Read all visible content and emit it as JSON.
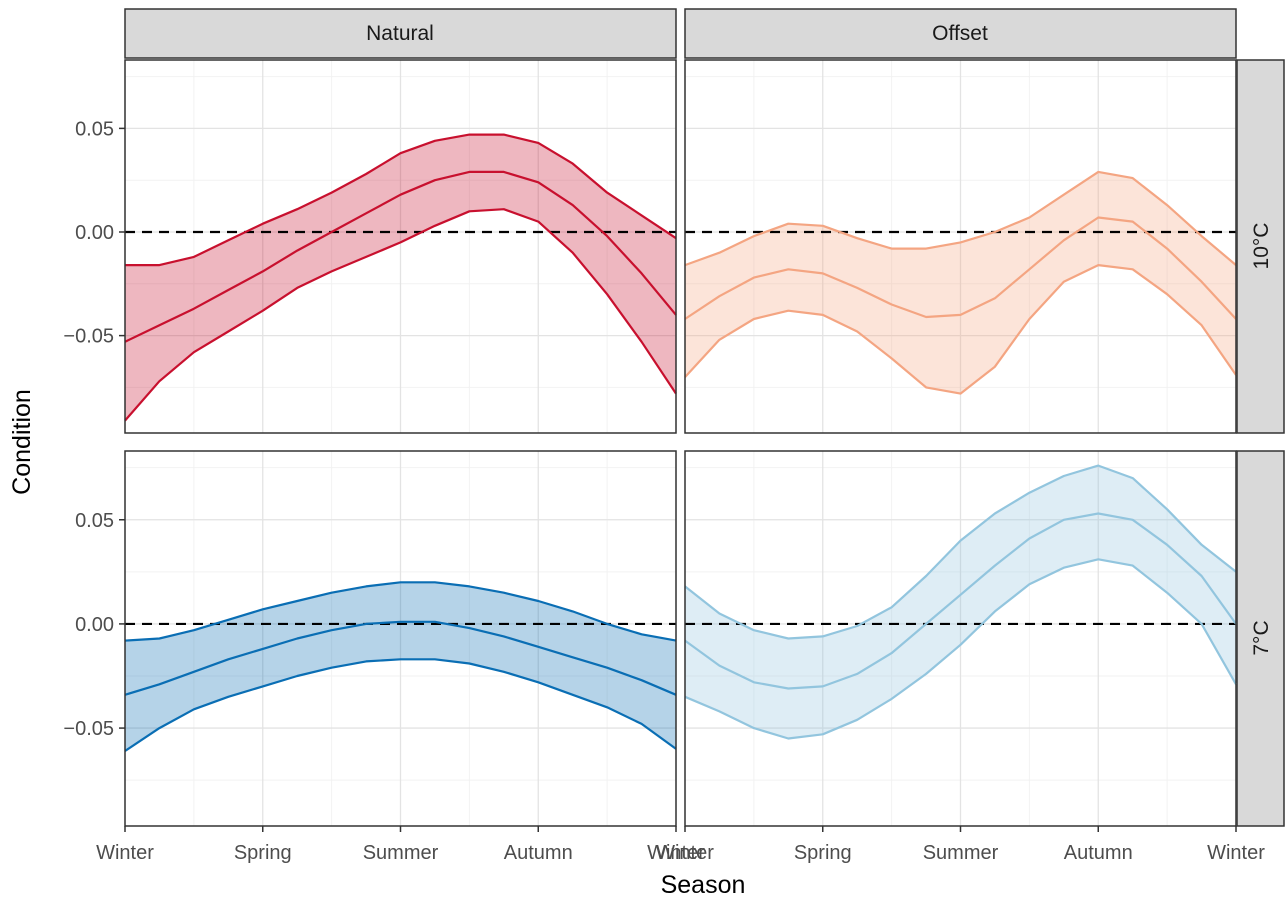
{
  "chart_data": {
    "type": "line",
    "xlabel": "Season",
    "ylabel": "Condition",
    "x_ticks": [
      "Winter",
      "Spring",
      "Summer",
      "Autumn",
      "Winter"
    ],
    "y_ticks": [
      -0.05,
      0.0,
      0.05
    ],
    "y_tick_labels": [
      "−0.05",
      "0.00",
      "0.05"
    ],
    "ylim": [
      -0.097,
      0.083
    ],
    "xlim": [
      0,
      4
    ],
    "reference_line_y": 0,
    "grid": true,
    "column_strips": [
      "Natural",
      "Offset"
    ],
    "row_strips": [
      "10°C",
      "7°C"
    ],
    "panels": [
      {
        "row": "10°C",
        "col": "Natural",
        "color": "#c8102e",
        "x": [
          0,
          0.25,
          0.5,
          0.75,
          1,
          1.25,
          1.5,
          1.75,
          2,
          2.25,
          2.5,
          2.75,
          3,
          3.25,
          3.5,
          3.75,
          4
        ],
        "fit": [
          -0.053,
          -0.045,
          -0.037,
          -0.028,
          -0.019,
          -0.009,
          0.0,
          0.009,
          0.018,
          0.025,
          0.029,
          0.029,
          0.024,
          0.013,
          -0.002,
          -0.02,
          -0.04
        ],
        "lower": [
          -0.091,
          -0.072,
          -0.058,
          -0.048,
          -0.038,
          -0.027,
          -0.019,
          -0.012,
          -0.005,
          0.003,
          0.01,
          0.011,
          0.005,
          -0.01,
          -0.03,
          -0.053,
          -0.078
        ],
        "upper": [
          -0.016,
          -0.016,
          -0.012,
          -0.004,
          0.004,
          0.011,
          0.019,
          0.028,
          0.038,
          0.044,
          0.047,
          0.047,
          0.043,
          0.033,
          0.019,
          0.008,
          -0.003
        ]
      },
      {
        "row": "10°C",
        "col": "Offset",
        "color": "#f4a582",
        "x": [
          0,
          0.25,
          0.5,
          0.75,
          1,
          1.25,
          1.5,
          1.75,
          2,
          2.25,
          2.5,
          2.75,
          3,
          3.25,
          3.5,
          3.75,
          4
        ],
        "fit": [
          -0.042,
          -0.031,
          -0.022,
          -0.018,
          -0.02,
          -0.027,
          -0.035,
          -0.041,
          -0.04,
          -0.032,
          -0.018,
          -0.004,
          0.007,
          0.005,
          -0.008,
          -0.024,
          -0.042
        ],
        "lower": [
          -0.07,
          -0.052,
          -0.042,
          -0.038,
          -0.04,
          -0.048,
          -0.061,
          -0.075,
          -0.078,
          -0.065,
          -0.042,
          -0.024,
          -0.016,
          -0.018,
          -0.03,
          -0.045,
          -0.069
        ],
        "upper": [
          -0.016,
          -0.01,
          -0.002,
          0.004,
          0.003,
          -0.003,
          -0.008,
          -0.008,
          -0.005,
          0.0,
          0.007,
          0.018,
          0.029,
          0.026,
          0.013,
          -0.002,
          -0.016
        ]
      },
      {
        "row": "7°C",
        "col": "Natural",
        "color": "#0a6eb4",
        "x": [
          0,
          0.25,
          0.5,
          0.75,
          1,
          1.25,
          1.5,
          1.75,
          2,
          2.25,
          2.5,
          2.75,
          3,
          3.25,
          3.5,
          3.75,
          4
        ],
        "fit": [
          -0.034,
          -0.029,
          -0.023,
          -0.017,
          -0.012,
          -0.007,
          -0.003,
          0.0,
          0.001,
          0.001,
          -0.002,
          -0.006,
          -0.011,
          -0.016,
          -0.021,
          -0.027,
          -0.034
        ],
        "lower": [
          -0.061,
          -0.05,
          -0.041,
          -0.035,
          -0.03,
          -0.025,
          -0.021,
          -0.018,
          -0.017,
          -0.017,
          -0.019,
          -0.023,
          -0.028,
          -0.034,
          -0.04,
          -0.048,
          -0.06
        ],
        "upper": [
          -0.008,
          -0.007,
          -0.003,
          0.002,
          0.007,
          0.011,
          0.015,
          0.018,
          0.02,
          0.02,
          0.018,
          0.015,
          0.011,
          0.006,
          0.0,
          -0.005,
          -0.008
        ]
      },
      {
        "row": "7°C",
        "col": "Offset",
        "color": "#92c5de",
        "x": [
          0,
          0.25,
          0.5,
          0.75,
          1,
          1.25,
          1.5,
          1.75,
          2,
          2.25,
          2.5,
          2.75,
          3,
          3.25,
          3.5,
          3.75,
          4
        ],
        "fit": [
          -0.008,
          -0.02,
          -0.028,
          -0.031,
          -0.03,
          -0.024,
          -0.014,
          0.0,
          0.014,
          0.028,
          0.041,
          0.05,
          0.053,
          0.05,
          0.038,
          0.023,
          0.0
        ],
        "lower": [
          -0.035,
          -0.042,
          -0.05,
          -0.055,
          -0.053,
          -0.046,
          -0.036,
          -0.024,
          -0.01,
          0.006,
          0.019,
          0.027,
          0.031,
          0.028,
          0.015,
          0.0,
          -0.029
        ],
        "upper": [
          0.018,
          0.005,
          -0.003,
          -0.007,
          -0.006,
          -0.001,
          0.008,
          0.023,
          0.04,
          0.053,
          0.063,
          0.071,
          0.076,
          0.07,
          0.055,
          0.038,
          0.025
        ]
      }
    ]
  }
}
